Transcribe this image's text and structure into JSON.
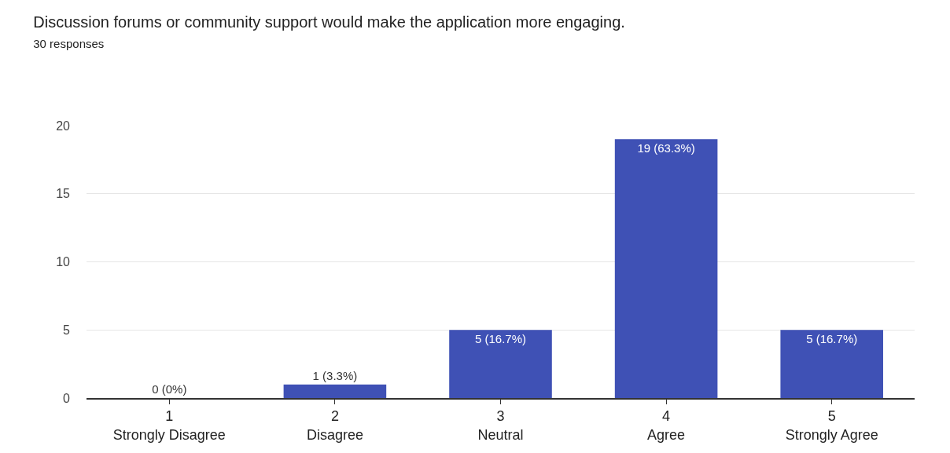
{
  "chart_data": {
    "type": "bar",
    "title": "Discussion forums or community support would make the application more engaging.",
    "subtitle": "30 responses",
    "categories": [
      "1\nStrongly Disagree",
      "2\nDisagree",
      "3\nNeutral",
      "4\nAgree",
      "5\nStrongly Agree"
    ],
    "values": [
      0,
      1,
      5,
      19,
      5
    ],
    "value_labels": [
      "0 (0%)",
      "1 (3.3%)",
      "5 (16.7%)",
      "19 (63.3%)",
      "5 (16.7%)"
    ],
    "color": "#3f51b5",
    "ylim": [
      0,
      20
    ],
    "yticks": [
      0,
      5,
      10,
      15,
      20
    ],
    "grid": "y"
  }
}
